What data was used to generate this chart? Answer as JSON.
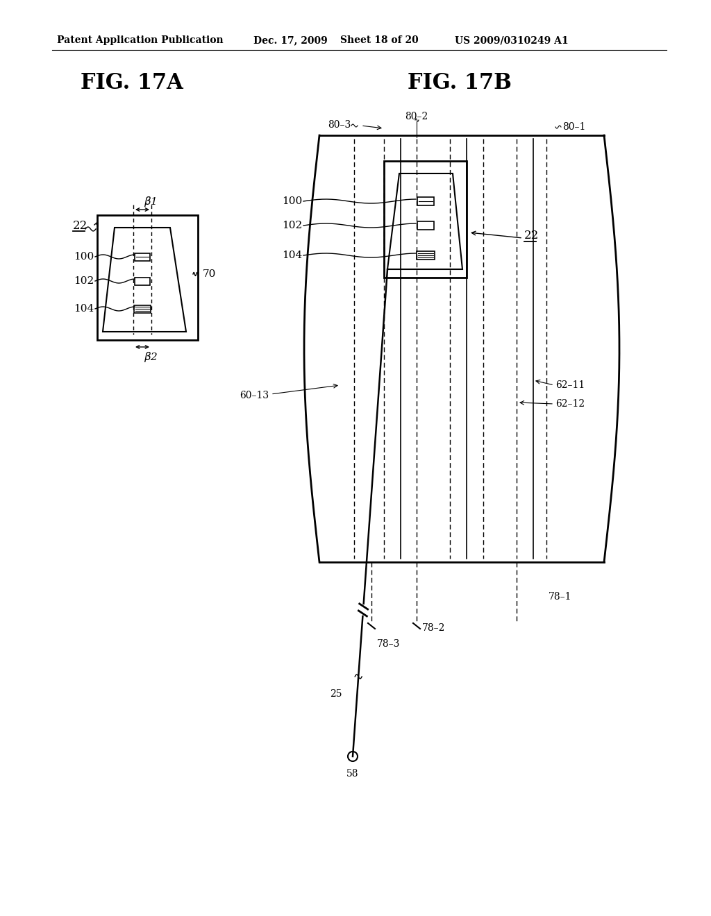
{
  "bg_color": "#ffffff",
  "header_text": "Patent Application Publication",
  "header_date": "Dec. 17, 2009",
  "header_sheet": "Sheet 18 of 20",
  "header_patent": "US 2009/0310249 A1",
  "fig17a_title": "FIG. 17A",
  "fig17b_title": "FIG. 17B",
  "fig_title_fontsize": 22,
  "header_fontsize": 11,
  "label_fontsize": 11,
  "small_fontsize": 10
}
